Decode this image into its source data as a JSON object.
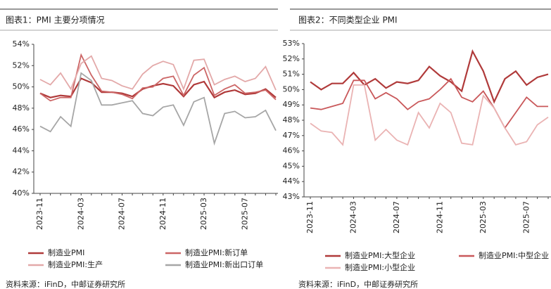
{
  "chart_data": [
    {
      "type": "line",
      "title": "图表1：PMI 主要分项情况",
      "categories": [
        "2023-11",
        null,
        null,
        null,
        "2024-03",
        null,
        null,
        null,
        "2024-07",
        null,
        null,
        null,
        "2024-11",
        null,
        null,
        null,
        "2025-03",
        null,
        null,
        null,
        "2025-07",
        null,
        null,
        null
      ],
      "series": [
        {
          "name": "制造业PMI",
          "color": "#b03a3a",
          "values": [
            49.4,
            49.0,
            49.2,
            49.1,
            50.8,
            50.4,
            49.5,
            49.5,
            49.4,
            49.1,
            49.8,
            50.1,
            50.3,
            50.1,
            49.1,
            50.2,
            50.5,
            49.0,
            49.5,
            49.7,
            49.3,
            49.4,
            49.8,
            49.0
          ]
        },
        {
          "name": "制造业PMI:新订单",
          "color": "#cc6666",
          "values": [
            49.4,
            48.7,
            49.0,
            49.0,
            53.0,
            51.1,
            49.6,
            49.5,
            49.3,
            48.9,
            49.9,
            50.0,
            50.8,
            51.0,
            49.2,
            51.1,
            51.8,
            49.2,
            49.8,
            50.2,
            49.4,
            49.5,
            49.7,
            48.8
          ]
        },
        {
          "name": "制造业PMI:生产",
          "color": "#e3a9a9",
          "values": [
            50.7,
            50.2,
            51.3,
            49.8,
            52.2,
            52.9,
            50.8,
            50.6,
            50.1,
            49.8,
            51.2,
            52.0,
            52.4,
            52.1,
            49.8,
            52.5,
            52.6,
            50.2,
            50.7,
            51.0,
            50.5,
            50.8,
            51.9,
            49.7
          ]
        },
        {
          "name": "制造业PMI:新出口订单",
          "color": "#a6a6a6",
          "values": [
            46.3,
            45.8,
            47.2,
            46.3,
            51.3,
            50.6,
            48.3,
            48.3,
            48.5,
            48.7,
            47.5,
            47.3,
            48.1,
            48.3,
            46.4,
            48.6,
            49.0,
            44.7,
            47.5,
            47.7,
            47.1,
            47.2,
            47.8,
            45.9
          ]
        }
      ],
      "ylim": [
        40,
        54
      ],
      "yticks": [
        {
          "value": 40,
          "label": "40%"
        },
        {
          "value": 42,
          "label": "42%"
        },
        {
          "value": 44,
          "label": "44%"
        },
        {
          "value": 46,
          "label": "46%"
        },
        {
          "value": 48,
          "label": "48%"
        },
        {
          "value": 50,
          "label": "50%"
        },
        {
          "value": 52,
          "label": "52%"
        },
        {
          "value": 54,
          "label": "54%"
        }
      ],
      "source": "资料来源：iFinD，中邮证券研究所"
    },
    {
      "type": "line",
      "title": "图表2：不同类型企业 PMI",
      "categories": [
        "2023-11",
        null,
        null,
        null,
        "2024-03",
        null,
        null,
        null,
        "2024-07",
        null,
        null,
        null,
        "2024-11",
        null,
        null,
        null,
        "2025-03",
        null,
        null,
        null,
        "2025-07",
        null,
        null
      ],
      "series": [
        {
          "name": "制造业PMI:大型企业",
          "color": "#b03a3a",
          "values": [
            50.5,
            50.0,
            50.4,
            50.4,
            51.1,
            50.3,
            50.7,
            50.1,
            50.5,
            50.4,
            50.6,
            51.5,
            50.9,
            50.5,
            49.9,
            52.5,
            51.2,
            49.2,
            50.7,
            51.2,
            50.3,
            50.8,
            51.0
          ]
        },
        {
          "name": "制造业PMI:中型企业",
          "color": "#c9585a",
          "values": [
            48.8,
            48.7,
            48.9,
            49.1,
            50.6,
            50.6,
            49.4,
            49.8,
            49.4,
            48.7,
            49.2,
            49.4,
            50.0,
            50.7,
            49.5,
            49.2,
            49.9,
            48.8,
            47.5,
            48.5,
            49.5,
            48.9,
            48.9
          ]
        },
        {
          "name": "制造业PMI:小型企业",
          "color": "#eab3b3",
          "values": [
            47.8,
            47.3,
            47.2,
            46.4,
            50.3,
            50.3,
            46.7,
            47.4,
            46.7,
            46.4,
            48.5,
            47.5,
            49.1,
            48.5,
            46.5,
            46.4,
            49.6,
            48.8,
            47.5,
            46.4,
            46.6,
            47.7,
            48.2
          ]
        }
      ],
      "ylim": [
        43,
        53
      ],
      "yticks": [
        {
          "value": 43,
          "label": "43%"
        },
        {
          "value": 44,
          "label": "44%"
        },
        {
          "value": 45,
          "label": "45%"
        },
        {
          "value": 46,
          "label": "46%"
        },
        {
          "value": 47,
          "label": "47%"
        },
        {
          "value": 48,
          "label": "48%"
        },
        {
          "value": 49,
          "label": "49%"
        },
        {
          "value": 50,
          "label": "50%"
        },
        {
          "value": 51,
          "label": "51%"
        },
        {
          "value": 52,
          "label": "52%"
        },
        {
          "value": 53,
          "label": "53%"
        }
      ],
      "source": "资料来源：iFinD，中邮证券研究所"
    }
  ]
}
